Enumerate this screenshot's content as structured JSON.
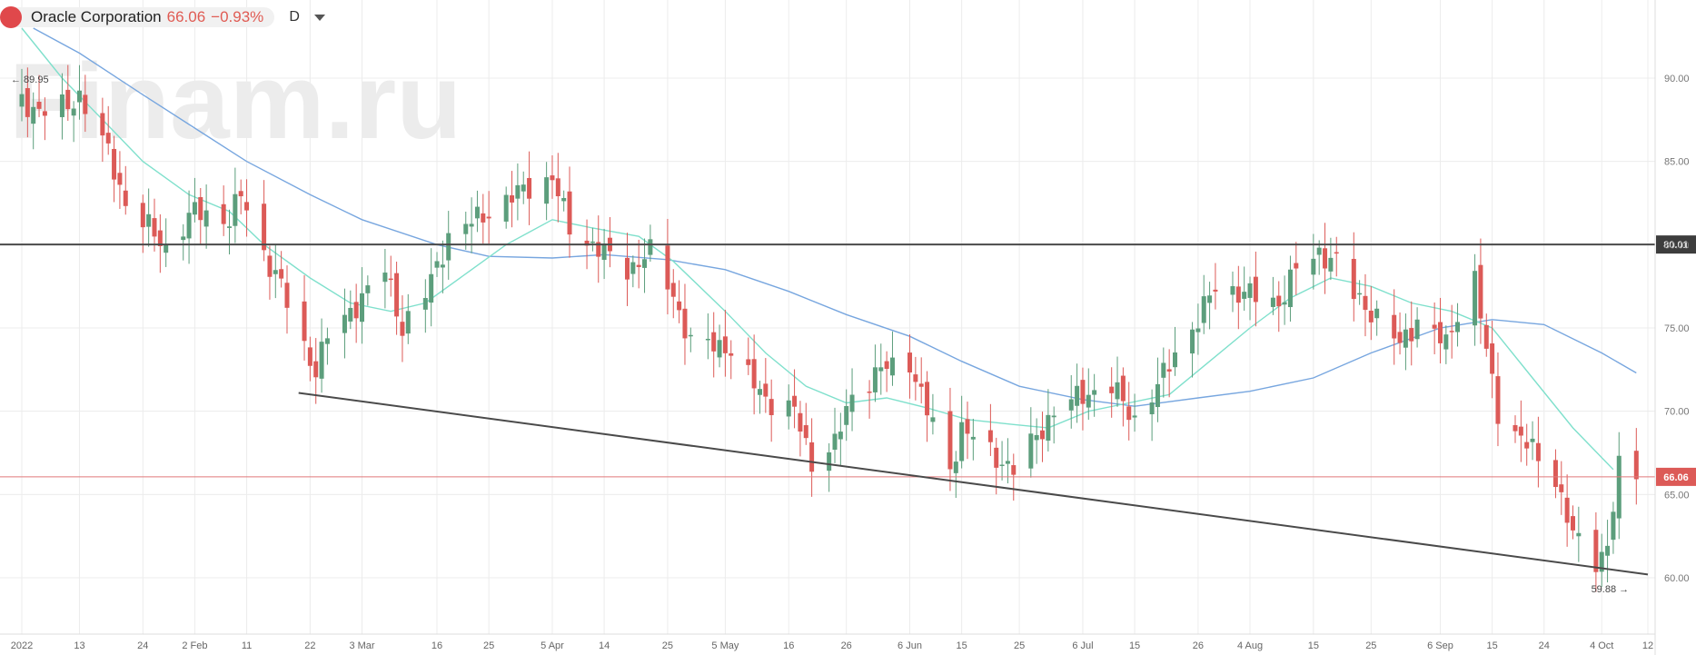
{
  "header": {
    "symbol": "Oracle Corporation",
    "last": "66.06",
    "change": "−0.93%",
    "interval": "D",
    "dropdown_icon": "chevron-down-icon"
  },
  "watermark": "Finam.ru",
  "colors": {
    "up": "#5c9e7c",
    "down": "#dc5a57",
    "ma_fast": "#7fe0cc",
    "ma_slow": "#77a6df",
    "price_line": "#e0797a",
    "level_line": "#4a4a4a",
    "grid": "#ececec"
  },
  "chart_data": {
    "type": "candlestick",
    "ylim": [
      56.5,
      93.5
    ],
    "y_ticks": [
      "60.00",
      "65.00",
      "70.00",
      "75.00",
      "80.00",
      "85.00",
      "90.00"
    ],
    "x_ticks": [
      {
        "label": "2022",
        "date": "2022-01-03"
      },
      {
        "label": "13",
        "date": "2022-01-13"
      },
      {
        "label": "24",
        "date": "2022-01-24"
      },
      {
        "label": "2 Feb",
        "date": "2022-02-02"
      },
      {
        "label": "11",
        "date": "2022-02-11"
      },
      {
        "label": "22",
        "date": "2022-02-22"
      },
      {
        "label": "3 Mar",
        "date": "2022-03-03"
      },
      {
        "label": "16",
        "date": "2022-03-16"
      },
      {
        "label": "25",
        "date": "2022-03-25"
      },
      {
        "label": "5 Apr",
        "date": "2022-04-05"
      },
      {
        "label": "14",
        "date": "2022-04-14"
      },
      {
        "label": "25",
        "date": "2022-04-25"
      },
      {
        "label": "5 May",
        "date": "2022-05-05"
      },
      {
        "label": "16",
        "date": "2022-05-16"
      },
      {
        "label": "26",
        "date": "2022-05-26"
      },
      {
        "label": "6 Jun",
        "date": "2022-06-06"
      },
      {
        "label": "15",
        "date": "2022-06-15"
      },
      {
        "label": "25",
        "date": "2022-06-25"
      },
      {
        "label": "6 Jul",
        "date": "2022-07-06"
      },
      {
        "label": "15",
        "date": "2022-07-15"
      },
      {
        "label": "26",
        "date": "2022-07-26"
      },
      {
        "label": "4 Aug",
        "date": "2022-08-04"
      },
      {
        "label": "15",
        "date": "2022-08-15"
      },
      {
        "label": "25",
        "date": "2022-08-25"
      },
      {
        "label": "6 Sep",
        "date": "2022-09-06"
      },
      {
        "label": "15",
        "date": "2022-09-15"
      },
      {
        "label": "24",
        "date": "2022-09-24"
      },
      {
        "label": "4 Oct",
        "date": "2022-10-04"
      },
      {
        "label": "12",
        "date": "2022-10-12"
      }
    ],
    "close_path": [
      [
        "2022-01-03",
        88.5
      ],
      [
        "2022-01-07",
        88.0
      ],
      [
        "2022-01-11",
        88.3
      ],
      [
        "2022-01-13",
        89.0
      ],
      [
        "2022-01-18",
        85.5
      ],
      [
        "2022-01-21",
        82.5
      ],
      [
        "2022-01-25",
        81.0
      ],
      [
        "2022-01-28",
        79.8
      ],
      [
        "2022-02-02",
        82.0
      ],
      [
        "2022-02-08",
        81.5
      ],
      [
        "2022-02-10",
        83.0
      ],
      [
        "2022-02-14",
        79.5
      ],
      [
        "2022-02-17",
        77.5
      ],
      [
        "2022-02-20",
        74.5
      ],
      [
        "2022-02-23",
        72.5
      ],
      [
        "2022-02-25",
        74.5
      ],
      [
        "2022-03-01",
        76.0
      ],
      [
        "2022-03-07",
        78.5
      ],
      [
        "2022-03-10",
        75.0
      ],
      [
        "2022-03-14",
        77.0
      ],
      [
        "2022-03-18",
        80.5
      ],
      [
        "2022-03-25",
        82.0
      ],
      [
        "2022-04-01",
        83.5
      ],
      [
        "2022-04-05",
        84.0
      ],
      [
        "2022-04-08",
        81.0
      ],
      [
        "2022-04-14",
        79.5
      ],
      [
        "2022-04-18",
        78.5
      ],
      [
        "2022-04-22",
        79.5
      ],
      [
        "2022-04-26",
        77.0
      ],
      [
        "2022-04-29",
        74.0
      ],
      [
        "2022-05-05",
        74.0
      ],
      [
        "2022-05-09",
        72.0
      ],
      [
        "2022-05-13",
        70.5
      ],
      [
        "2022-05-17",
        70.0
      ],
      [
        "2022-05-20",
        67.0
      ],
      [
        "2022-05-24",
        68.0
      ],
      [
        "2022-05-27",
        71.0
      ],
      [
        "2022-06-01",
        72.5
      ],
      [
        "2022-06-06",
        73.0
      ],
      [
        "2022-06-09",
        70.0
      ],
      [
        "2022-06-13",
        66.5
      ],
      [
        "2022-06-15",
        69.0
      ],
      [
        "2022-06-20",
        67.5
      ],
      [
        "2022-06-24",
        66.5
      ],
      [
        "2022-06-28",
        68.5
      ],
      [
        "2022-07-01",
        70.0
      ],
      [
        "2022-07-06",
        71.0
      ],
      [
        "2022-07-11",
        71.5
      ],
      [
        "2022-07-15",
        69.5
      ],
      [
        "2022-07-19",
        71.5
      ],
      [
        "2022-07-22",
        73.5
      ],
      [
        "2022-07-26",
        75.5
      ],
      [
        "2022-07-29",
        77.5
      ],
      [
        "2022-08-04",
        77.0
      ],
      [
        "2022-08-09",
        76.5
      ],
      [
        "2022-08-12",
        78.5
      ],
      [
        "2022-08-16",
        79.5
      ],
      [
        "2022-08-19",
        79.0
      ],
      [
        "2022-08-22",
        77.0
      ],
      [
        "2022-08-25",
        76.0
      ],
      [
        "2022-08-30",
        74.0
      ],
      [
        "2022-09-02",
        75.5
      ],
      [
        "2022-09-07",
        74.0
      ],
      [
        "2022-09-09",
        76.0
      ],
      [
        "2022-09-12",
        78.0
      ],
      [
        "2022-09-14",
        73.5
      ],
      [
        "2022-09-16",
        70.0
      ],
      [
        "2022-09-21",
        68.0
      ],
      [
        "2022-09-26",
        66.0
      ],
      [
        "2022-09-29",
        62.5
      ],
      [
        "2022-10-03",
        61.0
      ],
      [
        "2022-10-05",
        62.0
      ],
      [
        "2022-10-07",
        66.5
      ],
      [
        "2022-10-10",
        66.06
      ]
    ],
    "ma_fast": [
      [
        "2022-01-03",
        93.0
      ],
      [
        "2022-01-10",
        90.0
      ],
      [
        "2022-01-17",
        87.5
      ],
      [
        "2022-01-24",
        85.0
      ],
      [
        "2022-02-01",
        83.0
      ],
      [
        "2022-02-08",
        82.0
      ],
      [
        "2022-02-14",
        80.0
      ],
      [
        "2022-02-22",
        78.0
      ],
      [
        "2022-03-01",
        76.5
      ],
      [
        "2022-03-08",
        76.0
      ],
      [
        "2022-03-14",
        76.5
      ],
      [
        "2022-03-22",
        78.5
      ],
      [
        "2022-03-28",
        80.0
      ],
      [
        "2022-04-05",
        81.5
      ],
      [
        "2022-04-12",
        81.0
      ],
      [
        "2022-04-20",
        80.5
      ],
      [
        "2022-04-26",
        79.0
      ],
      [
        "2022-05-05",
        76.0
      ],
      [
        "2022-05-12",
        73.5
      ],
      [
        "2022-05-19",
        71.5
      ],
      [
        "2022-05-26",
        70.5
      ],
      [
        "2022-06-02",
        70.8
      ],
      [
        "2022-06-09",
        70.2
      ],
      [
        "2022-06-16",
        69.5
      ],
      [
        "2022-06-24",
        69.2
      ],
      [
        "2022-06-30",
        69.0
      ],
      [
        "2022-07-07",
        70.0
      ],
      [
        "2022-07-14",
        70.5
      ],
      [
        "2022-07-21",
        71.0
      ],
      [
        "2022-07-28",
        73.0
      ],
      [
        "2022-08-04",
        75.0
      ],
      [
        "2022-08-11",
        76.8
      ],
      [
        "2022-08-18",
        78.0
      ],
      [
        "2022-08-25",
        77.5
      ],
      [
        "2022-09-01",
        76.5
      ],
      [
        "2022-09-08",
        76.0
      ],
      [
        "2022-09-15",
        75.0
      ],
      [
        "2022-09-22",
        72.0
      ],
      [
        "2022-09-29",
        69.0
      ],
      [
        "2022-10-06",
        66.5
      ]
    ],
    "ma_slow": [
      [
        "2022-01-05",
        93.0
      ],
      [
        "2022-01-13",
        91.5
      ],
      [
        "2022-01-24",
        89.0
      ],
      [
        "2022-02-02",
        87.0
      ],
      [
        "2022-02-11",
        85.0
      ],
      [
        "2022-02-22",
        83.0
      ],
      [
        "2022-03-03",
        81.5
      ],
      [
        "2022-03-16",
        80.0
      ],
      [
        "2022-03-25",
        79.3
      ],
      [
        "2022-04-05",
        79.2
      ],
      [
        "2022-04-14",
        79.4
      ],
      [
        "2022-04-25",
        79.1
      ],
      [
        "2022-05-05",
        78.5
      ],
      [
        "2022-05-16",
        77.2
      ],
      [
        "2022-05-26",
        75.8
      ],
      [
        "2022-06-06",
        74.5
      ],
      [
        "2022-06-15",
        73.0
      ],
      [
        "2022-06-25",
        71.5
      ],
      [
        "2022-07-06",
        70.7
      ],
      [
        "2022-07-15",
        70.3
      ],
      [
        "2022-07-26",
        70.8
      ],
      [
        "2022-08-04",
        71.2
      ],
      [
        "2022-08-15",
        72.0
      ],
      [
        "2022-08-25",
        73.5
      ],
      [
        "2022-09-06",
        75.0
      ],
      [
        "2022-09-15",
        75.5
      ],
      [
        "2022-09-24",
        75.2
      ],
      [
        "2022-10-04",
        73.5
      ],
      [
        "2022-10-10",
        72.3
      ]
    ],
    "horizontal_level": {
      "value": 80.01,
      "label": "80.01"
    },
    "last_price": {
      "value": 66.06,
      "label": "66.06"
    },
    "trendline": {
      "start": [
        "2022-02-20",
        71.1
      ],
      "end": [
        "2022-10-12",
        60.2
      ]
    },
    "annotations": [
      {
        "label": "89.95",
        "date": "2022-01-03",
        "value": 89.95
      },
      {
        "label": "59.88",
        "date": "2022-10-05",
        "value": 59.88
      }
    ]
  }
}
